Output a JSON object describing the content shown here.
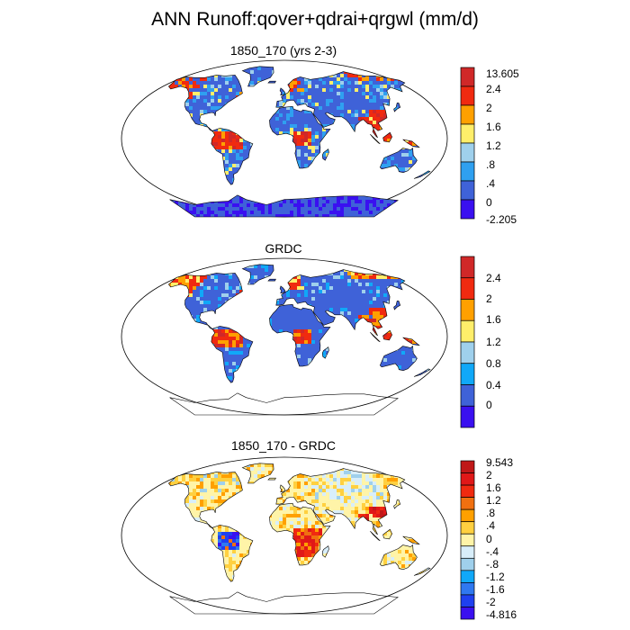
{
  "title": "ANN Runoff:qover+qdrai+qrgwl (mm/d)",
  "colors": {
    "panel1": [
      "#3a10f0",
      "#3f62d8",
      "#2fa0f0",
      "#9fd0ec",
      "#ffee6a",
      "#ffa000",
      "#f02a10",
      "#d02828"
    ],
    "panel2": [
      "#3a10f0",
      "#3f62d8",
      "#10a8f8",
      "#9fd0ec",
      "#ffee6a",
      "#ffa000",
      "#f02a10",
      "#d02828"
    ],
    "panel3": [
      "#3a10f0",
      "#1f40f0",
      "#2f78f0",
      "#10a8f8",
      "#9fd0ec",
      "#d8eefa",
      "#fff4a8",
      "#ffd040",
      "#ffa000",
      "#f07010",
      "#f02a10",
      "#e01818",
      "#c01818"
    ],
    "coast": "#000000",
    "ocean": "#ffffff"
  },
  "panels": [
    {
      "title": "1850_170 (yrs 2-3)",
      "colorbar_labels": [
        "13.605",
        "2.4",
        "2",
        "1.6",
        "1.2",
        ".8",
        ".4",
        "0",
        "-2.205"
      ],
      "antarctica_filled": true
    },
    {
      "title": "GRDC",
      "colorbar_labels": [
        "2.4",
        "2",
        "1.6",
        "1.2",
        "0.8",
        "0.4",
        "0"
      ],
      "antarctica_filled": false
    },
    {
      "title": "1850_170 - GRDC",
      "colorbar_labels": [
        "9.543",
        "2",
        "1.6",
        "1.2",
        ".8",
        ".4",
        "0",
        "-.4",
        "-.8",
        "-1.2",
        "-1.6",
        "-2",
        "-4.816"
      ],
      "antarctica_filled": false
    }
  ]
}
